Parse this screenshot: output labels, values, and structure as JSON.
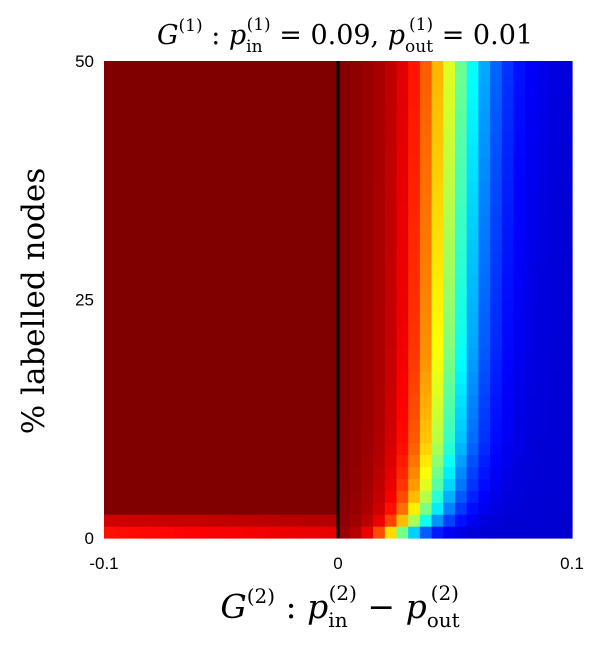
{
  "chart_data": {
    "type": "heatmap",
    "title": {
      "prefix": "G",
      "prefix_sup": "(1)",
      "sep": " : ",
      "p_in": "p",
      "p_in_sub": "in",
      "p_in_sup": "(1)",
      "p_in_value": " = 0.09, ",
      "p_out": "p",
      "p_out_sub": "out",
      "p_out_sup": "(1)",
      "p_out_value": " = 0.01"
    },
    "xlabel": {
      "prefix": "G",
      "prefix_sup": "(2)",
      "sep": " :  ",
      "p_in": "p",
      "p_in_sub": "in",
      "p_in_sup": "(2)",
      "minus": " − ",
      "p_out": "p",
      "p_out_sub": "out",
      "p_out_sup": "(2)"
    },
    "ylabel": "% labelled nodes",
    "xlim": [
      -0.1,
      0.1
    ],
    "ylim": [
      0,
      50
    ],
    "xticks": [
      {
        "value": -0.1,
        "label": "-0.1"
      },
      {
        "value": 0,
        "label": "0"
      },
      {
        "value": 0.1,
        "label": "0.1"
      }
    ],
    "yticks": [
      {
        "value": 0,
        "label": "0"
      },
      {
        "value": 25,
        "label": "25"
      },
      {
        "value": 50,
        "label": "50"
      }
    ],
    "grid": {
      "nx": 40,
      "ny": 40
    },
    "colormap": "jet",
    "color_range": [
      0,
      1
    ],
    "reference_line": {
      "x": 0,
      "color": "#000000"
    },
    "region_left_of_zero": {
      "value": 1.0
    },
    "bottom_rows_left": [
      {
        "y_low": 0,
        "y_high": 1.25,
        "values": [
          0.86,
          0.9
        ]
      },
      {
        "y_low": 1.25,
        "y_high": 2.5,
        "values": [
          0.92,
          0.95
        ]
      }
    ],
    "decay_right_of_zero": {
      "note_rows": "half-value x-position per y",
      "profile": [
        {
          "y": 0,
          "x_half": 0.022,
          "width": 0.011
        },
        {
          "y": 1.25,
          "x_half": 0.03,
          "width": 0.013
        },
        {
          "y": 2.5,
          "x_half": 0.035,
          "width": 0.014
        },
        {
          "y": 5,
          "x_half": 0.039,
          "width": 0.015
        },
        {
          "y": 10,
          "x_half": 0.043,
          "width": 0.016
        },
        {
          "y": 20,
          "x_half": 0.046,
          "width": 0.017
        },
        {
          "y": 35,
          "x_half": 0.048,
          "width": 0.018
        },
        {
          "y": 50,
          "x_half": 0.05,
          "width": 0.019
        }
      ]
    }
  }
}
